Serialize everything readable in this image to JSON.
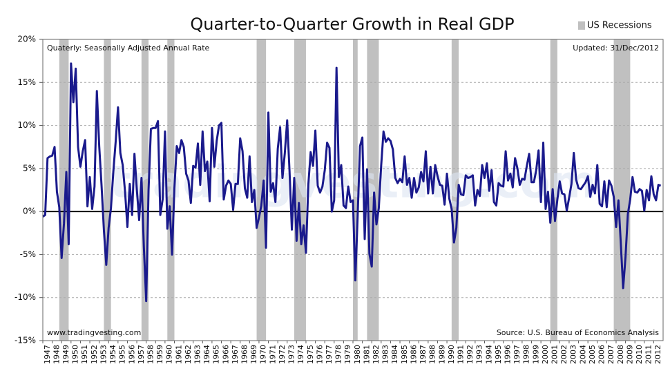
{
  "chart_data": {
    "type": "line",
    "title": "Quarter-to-Quarter Growth in Real GDP",
    "subtitle": "Quaterly: Seasonally Adjusted Annual Rate",
    "updated": "Updated: 31/Dec/2012",
    "website": "www.tradingvesting.com",
    "watermark": "tradingvesting.com",
    "source": "Source: U.S. Bureau of Economics Analysis",
    "recession_label": "US Recessions",
    "recession_color": "#c0c0c0",
    "recessions": [
      [
        1948.75,
        1949.75
      ],
      [
        1953.5,
        1954.25
      ],
      [
        1957.5,
        1958.25
      ],
      [
        1960.25,
        1961
      ],
      [
        1969.75,
        1970.75
      ],
      [
        1973.75,
        1975
      ],
      [
        1980,
        1980.5
      ],
      [
        1981.5,
        1982.75
      ],
      [
        1990.5,
        1991.25
      ],
      [
        2001,
        2001.75
      ],
      [
        2007.75,
        2009.5
      ]
    ],
    "color": "#1a1a8c",
    "xlim": [
      1947,
      2013
    ],
    "ylim": [
      -15,
      20
    ],
    "yticks": [
      {
        "value": -15,
        "label": "-15%"
      },
      {
        "value": -10,
        "label": "-10%"
      },
      {
        "value": -5,
        "label": "-5%"
      },
      {
        "value": 0,
        "label": "0%"
      },
      {
        "value": 5,
        "label": "5%"
      },
      {
        "value": 10,
        "label": "10%"
      },
      {
        "value": 15,
        "label": "15%"
      },
      {
        "value": 20,
        "label": "20%"
      }
    ],
    "grid": true,
    "xticks": [
      1947,
      1948,
      1949,
      1950,
      1951,
      1952,
      1953,
      1954,
      1955,
      1956,
      1957,
      1958,
      1959,
      1960,
      1961,
      1962,
      1963,
      1964,
      1965,
      1966,
      1967,
      1968,
      1969,
      1970,
      1971,
      1972,
      1973,
      1974,
      1975,
      1976,
      1977,
      1978,
      1979,
      1980,
      1981,
      1982,
      1983,
      1984,
      1985,
      1986,
      1987,
      1988,
      1989,
      1990,
      1991,
      1992,
      1993,
      1994,
      1995,
      1996,
      1997,
      1998,
      1999,
      2000,
      2001,
      2002,
      2003,
      2004,
      2005,
      2006,
      2007,
      2008,
      2009,
      2010,
      2011,
      2012
    ],
    "x": [
      1947,
      1947.25,
      1947.5,
      1947.75,
      1948,
      1948.25,
      1948.5,
      1948.75,
      1949,
      1949.25,
      1949.5,
      1949.75,
      1950,
      1950.25,
      1950.5,
      1950.75,
      1951,
      1951.25,
      1951.5,
      1951.75,
      1952,
      1952.25,
      1952.5,
      1952.75,
      1953,
      1953.25,
      1953.5,
      1953.75,
      1954,
      1954.25,
      1954.5,
      1954.75,
      1955,
      1955.25,
      1955.5,
      1955.75,
      1956,
      1956.25,
      1956.5,
      1956.75,
      1957,
      1957.25,
      1957.5,
      1957.75,
      1958,
      1958.25,
      1958.5,
      1958.75,
      1959,
      1959.25,
      1959.5,
      1959.75,
      1960,
      1960.25,
      1960.5,
      1960.75,
      1961,
      1961.25,
      1961.5,
      1961.75,
      1962,
      1962.25,
      1962.5,
      1962.75,
      1963,
      1963.25,
      1963.5,
      1963.75,
      1964,
      1964.25,
      1964.5,
      1964.75,
      1965,
      1965.25,
      1965.5,
      1965.75,
      1966,
      1966.25,
      1966.5,
      1966.75,
      1967,
      1967.25,
      1967.5,
      1967.75,
      1968,
      1968.25,
      1968.5,
      1968.75,
      1969,
      1969.25,
      1969.5,
      1969.75,
      1970,
      1970.25,
      1970.5,
      1970.75,
      1971,
      1971.25,
      1971.5,
      1971.75,
      1972,
      1972.25,
      1972.5,
      1972.75,
      1973,
      1973.25,
      1973.5,
      1973.75,
      1974,
      1974.25,
      1974.5,
      1974.75,
      1975,
      1975.25,
      1975.5,
      1975.75,
      1976,
      1976.25,
      1976.5,
      1976.75,
      1977,
      1977.25,
      1977.5,
      1977.75,
      1978,
      1978.25,
      1978.5,
      1978.75,
      1979,
      1979.25,
      1979.5,
      1979.75,
      1980,
      1980.25,
      1980.5,
      1980.75,
      1981,
      1981.25,
      1981.5,
      1981.75,
      1982,
      1982.25,
      1982.5,
      1982.75,
      1983,
      1983.25,
      1983.5,
      1983.75,
      1984,
      1984.25,
      1984.5,
      1984.75,
      1985,
      1985.25,
      1985.5,
      1985.75,
      1986,
      1986.25,
      1986.5,
      1986.75,
      1987,
      1987.25,
      1987.5,
      1987.75,
      1988,
      1988.25,
      1988.5,
      1988.75,
      1989,
      1989.25,
      1989.5,
      1989.75,
      1990,
      1990.25,
      1990.5,
      1990.75,
      1991,
      1991.25,
      1991.5,
      1991.75,
      1992,
      1992.25,
      1992.5,
      1992.75,
      1993,
      1993.25,
      1993.5,
      1993.75,
      1994,
      1994.25,
      1994.5,
      1994.75,
      1995,
      1995.25,
      1995.5,
      1995.75,
      1996,
      1996.25,
      1996.5,
      1996.75,
      1997,
      1997.25,
      1997.5,
      1997.75,
      1998,
      1998.25,
      1998.5,
      1998.75,
      1999,
      1999.25,
      1999.5,
      1999.75,
      2000,
      2000.25,
      2000.5,
      2000.75,
      2001,
      2001.25,
      2001.5,
      2001.75,
      2002,
      2002.25,
      2002.5,
      2002.75,
      2003,
      2003.25,
      2003.5,
      2003.75,
      2004,
      2004.25,
      2004.5,
      2004.75,
      2005,
      2005.25,
      2005.5,
      2005.75,
      2006,
      2006.25,
      2006.5,
      2006.75,
      2007,
      2007.25,
      2007.5,
      2007.75,
      2008,
      2008.25,
      2008.5,
      2008.75,
      2009,
      2009.25,
      2009.5,
      2009.75,
      2010,
      2010.25,
      2010.5,
      2010.75,
      2011,
      2011.25,
      2011.5,
      2011.75,
      2012,
      2012.25,
      2012.5,
      2012.75
    ],
    "values": [
      -0.6,
      -0.4,
      6.2,
      6.4,
      6.5,
      7.5,
      2.3,
      0.5,
      -5.4,
      -1.4,
      4.6,
      -3.8,
      17.2,
      12.7,
      16.6,
      7.5,
      5.2,
      7.0,
      8.3,
      0.6,
      4.0,
      0.3,
      2.9,
      14.0,
      7.6,
      3.0,
      -2.2,
      -6.2,
      -1.9,
      0.4,
      4.6,
      8.1,
      12.1,
      6.8,
      5.4,
      2.3,
      -1.8,
      3.2,
      -0.4,
      6.7,
      2.6,
      -1.0,
      3.9,
      -4.1,
      -10.4,
      2.5,
      9.6,
      9.7,
      9.7,
      10.5,
      -0.4,
      1.4,
      9.3,
      -2.0,
      0.6,
      -5.0,
      2.7,
      7.6,
      6.8,
      8.3,
      7.5,
      4.4,
      3.6,
      1.0,
      5.3,
      5.1,
      7.9,
      3.1,
      9.3,
      4.7,
      5.8,
      1.2,
      9.7,
      5.2,
      8.2,
      10.0,
      10.3,
      1.4,
      3.0,
      3.6,
      3.2,
      0.2,
      3.2,
      3.2,
      8.5,
      7.0,
      2.7,
      1.6,
      6.4,
      1.1,
      2.5,
      -1.9,
      -0.7,
      0.7,
      3.6,
      -4.2,
      11.5,
      2.3,
      3.3,
      1.1,
      7.3,
      9.8,
      3.9,
      6.8,
      10.6,
      4.7,
      -2.1,
      3.9,
      -3.4,
      1.0,
      -3.8,
      -1.6,
      -4.8,
      3.1,
      6.9,
      5.3,
      9.4,
      3.0,
      2.2,
      2.9,
      4.8,
      8.0,
      7.4,
      0.0,
      1.3,
      16.7,
      4.0,
      5.4,
      0.7,
      0.4,
      2.9,
      1.1,
      1.3,
      -8.0,
      -0.5,
      7.6,
      8.6,
      -3.2,
      4.9,
      -4.9,
      -6.4,
      2.2,
      -1.5,
      0.4,
      5.3,
      9.3,
      8.1,
      8.5,
      8.2,
      7.2,
      3.9,
      3.3,
      3.8,
      3.4,
      6.4,
      3.1,
      3.9,
      1.6,
      3.9,
      2.2,
      2.8,
      4.6,
      3.5,
      7.0,
      2.1,
      5.2,
      2.1,
      5.4,
      4.1,
      3.1,
      3.0,
      0.8,
      4.4,
      1.5,
      0.3,
      -3.6,
      -1.9,
      3.1,
      2.0,
      1.9,
      4.2,
      3.9,
      4.0,
      4.2,
      0.7,
      2.5,
      1.8,
      5.4,
      3.9,
      5.6,
      2.4,
      4.8,
      1.1,
      0.7,
      3.3,
      3.0,
      2.9,
      7.0,
      3.6,
      4.4,
      2.8,
      6.2,
      5.0,
      3.1,
      3.8,
      3.7,
      5.3,
      6.7,
      3.4,
      3.4,
      4.8,
      7.1,
      1.1,
      8.0,
      0.3,
      2.3,
      -1.3,
      2.6,
      -1.1,
      1.4,
      3.5,
      2.1,
      2.0,
      0.1,
      1.6,
      3.2,
      6.8,
      3.7,
      2.7,
      2.6,
      3.0,
      3.4,
      4.1,
      1.7,
      3.1,
      2.1,
      5.4,
      0.9,
      0.6,
      3.5,
      0.5,
      3.6,
      3.0,
      1.7,
      -1.8,
      1.3,
      -3.7,
      -8.9,
      -5.3,
      -0.3,
      1.4,
      4.0,
      2.3,
      2.2,
      2.6,
      2.4,
      0.1,
      2.5,
      1.3,
      4.1,
      2.0,
      1.3,
      3.1,
      3.0
    ]
  }
}
